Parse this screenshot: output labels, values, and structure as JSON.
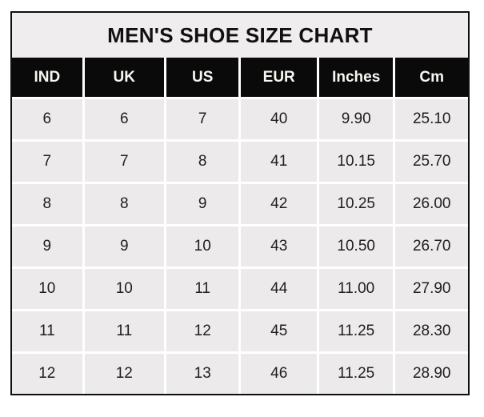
{
  "chart_data": {
    "type": "table",
    "title": "MEN'S SHOE SIZE CHART",
    "columns": [
      "IND",
      "UK",
      "US",
      "EUR",
      "Inches",
      "Cm"
    ],
    "rows": [
      [
        "6",
        "6",
        "7",
        "40",
        "9.90",
        "25.10"
      ],
      [
        "7",
        "7",
        "8",
        "41",
        "10.15",
        "25.70"
      ],
      [
        "8",
        "8",
        "9",
        "42",
        "10.25",
        "26.00"
      ],
      [
        "9",
        "9",
        "10",
        "43",
        "10.50",
        "26.70"
      ],
      [
        "10",
        "10",
        "11",
        "44",
        "11.00",
        "27.90"
      ],
      [
        "11",
        "11",
        "12",
        "45",
        "11.25",
        "28.30"
      ],
      [
        "12",
        "12",
        "13",
        "46",
        "11.25",
        "28.90"
      ]
    ],
    "legend": "none",
    "grid": "white gridlines between cells"
  },
  "colors": {
    "page-bg": "#ffffff",
    "border": "#101010",
    "title-bg": "#efeded",
    "title-text": "#111111",
    "header-bg": "#0a0a0a",
    "header-text": "#f8f8f3",
    "cell-bg": "#eceaea",
    "cell-text": "#1e1e1e",
    "grid-line": "#ffffff"
  }
}
